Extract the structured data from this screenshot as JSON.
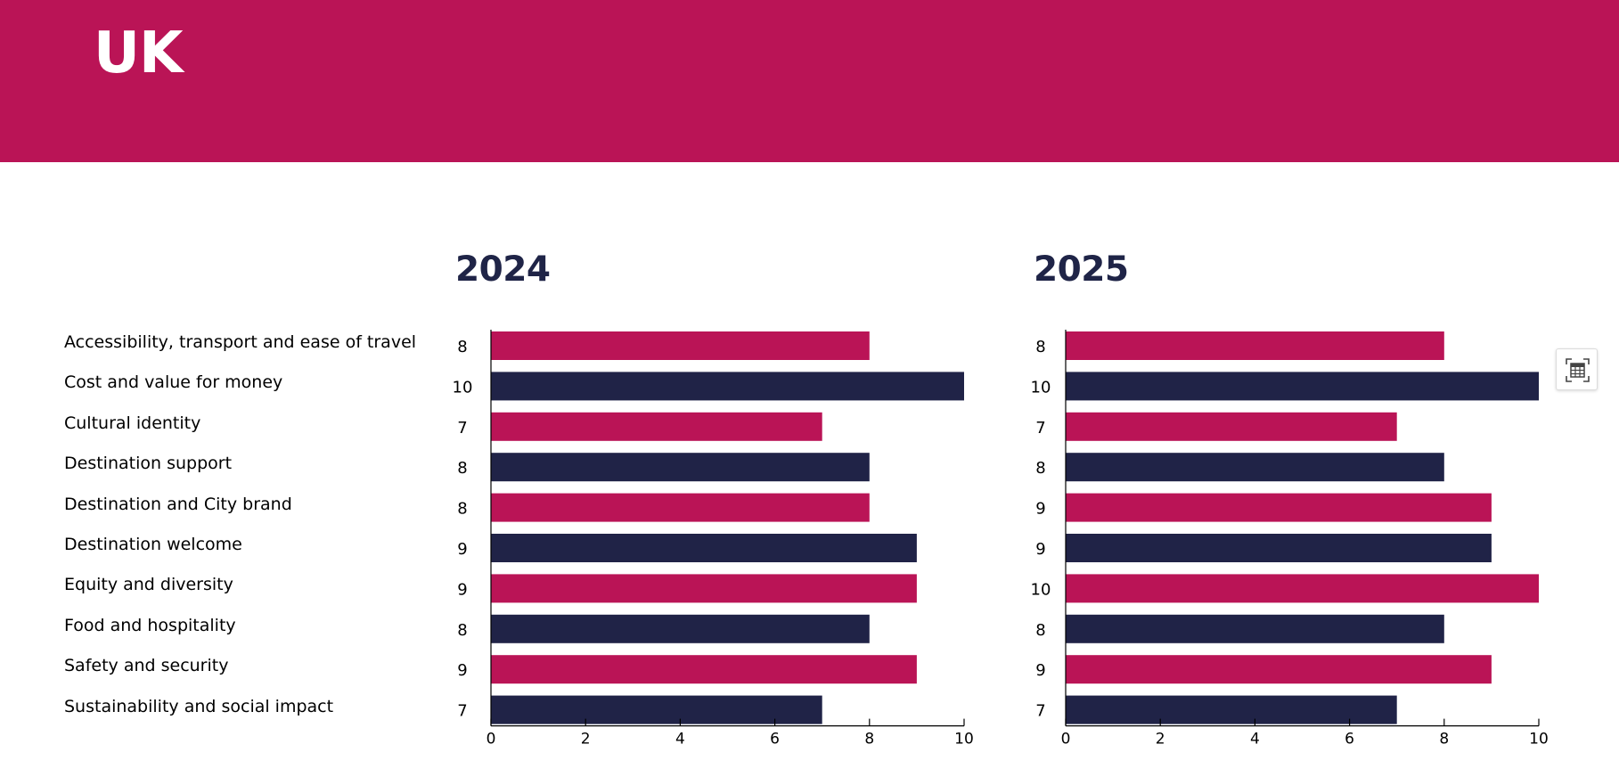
{
  "header": {
    "title": "UK",
    "color": "#ba1456"
  },
  "colors": {
    "pink": "#ba1456",
    "navy": "#202347",
    "title": "#1f2447"
  },
  "categories": [
    "Accessibility, transport and ease of travel",
    "Cost and value for money",
    "Cultural identity",
    "Destination support",
    "Destination and City brand",
    "Destination welcome",
    "Equity and diversity",
    "Food and hospitality",
    "Safety and security",
    "Sustainability and social impact"
  ],
  "chart_data": [
    {
      "type": "bar",
      "orientation": "horizontal",
      "title": "2024",
      "categories": [
        "Accessibility, transport and ease of travel",
        "Cost and value for money",
        "Cultural identity",
        "Destination support",
        "Destination and City brand",
        "Destination welcome",
        "Equity and diversity",
        "Food and hospitality",
        "Safety and security",
        "Sustainability and social impact"
      ],
      "values": [
        8,
        10,
        7,
        8,
        8,
        9,
        9,
        8,
        9,
        7
      ],
      "xlim": [
        0,
        10
      ],
      "xticks": [
        0,
        2,
        4,
        6,
        8,
        10
      ],
      "bar_colors": "alternating pink / navy",
      "grid": false
    },
    {
      "type": "bar",
      "orientation": "horizontal",
      "title": "2025",
      "categories": [
        "Accessibility, transport and ease of travel",
        "Cost and value for money",
        "Cultural identity",
        "Destination support",
        "Destination and City brand",
        "Destination welcome",
        "Equity and diversity",
        "Food and hospitality",
        "Safety and security",
        "Sustainability and social impact"
      ],
      "values": [
        8,
        10,
        7,
        8,
        9,
        9,
        10,
        8,
        9,
        7
      ],
      "xlim": [
        0,
        10
      ],
      "xticks": [
        0,
        2,
        4,
        6,
        8,
        10
      ],
      "bar_colors": "alternating pink / navy",
      "grid": false
    }
  ],
  "toolbar": {
    "table_view_icon": "table-view-icon"
  }
}
